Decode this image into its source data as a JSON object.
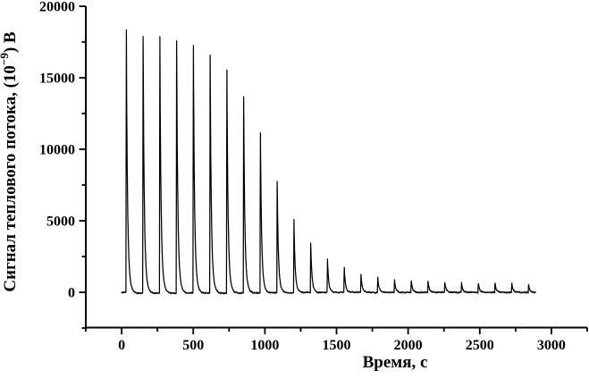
{
  "chart_data": {
    "type": "line",
    "title": "",
    "xlabel": "Время, с",
    "ylabel": "Сигнал теплового потока, (10⁻⁹) В",
    "ylabel_parts": {
      "prefix": "Сигнал теплового потока, (10",
      "sup": "−9",
      "suffix": ") В"
    },
    "xlim": [
      -250,
      3250
    ],
    "ylim": [
      -2500,
      20000
    ],
    "x_major_ticks": [
      0,
      500,
      1000,
      1500,
      2000,
      2500,
      3000
    ],
    "x_minor_step": 250,
    "y_major_ticks": [
      0,
      5000,
      10000,
      15000,
      20000
    ],
    "y_minor_step": 2500,
    "grid": false,
    "legend": null,
    "line_color": "#000000",
    "axis_color": "#000000",
    "background_color": "#ffffff",
    "series": [
      {
        "name": "heat-flow-signal",
        "baseline_value": 0,
        "trace_start_s": 0,
        "trace_end_s": 2889,
        "first_injection_s": 30,
        "injection_period_s": 117,
        "peaks": [
          {
            "t": 30,
            "v": 18400
          },
          {
            "t": 147,
            "v": 18050
          },
          {
            "t": 264,
            "v": 17890
          },
          {
            "t": 381,
            "v": 17700
          },
          {
            "t": 498,
            "v": 17420
          },
          {
            "t": 615,
            "v": 16600
          },
          {
            "t": 732,
            "v": 15550
          },
          {
            "t": 849,
            "v": 13730
          },
          {
            "t": 966,
            "v": 11150
          },
          {
            "t": 1083,
            "v": 7850
          },
          {
            "t": 1200,
            "v": 5150
          },
          {
            "t": 1317,
            "v": 3480
          },
          {
            "t": 1434,
            "v": 2290
          },
          {
            "t": 1551,
            "v": 1730
          },
          {
            "t": 1668,
            "v": 1250
          },
          {
            "t": 1785,
            "v": 1040
          },
          {
            "t": 1902,
            "v": 890
          },
          {
            "t": 2019,
            "v": 810
          },
          {
            "t": 2136,
            "v": 760
          },
          {
            "t": 2253,
            "v": 720
          },
          {
            "t": 2370,
            "v": 650
          },
          {
            "t": 2487,
            "v": 660
          },
          {
            "t": 2604,
            "v": 620
          },
          {
            "t": 2721,
            "v": 600
          },
          {
            "t": 2838,
            "v": 560
          }
        ]
      }
    ]
  }
}
